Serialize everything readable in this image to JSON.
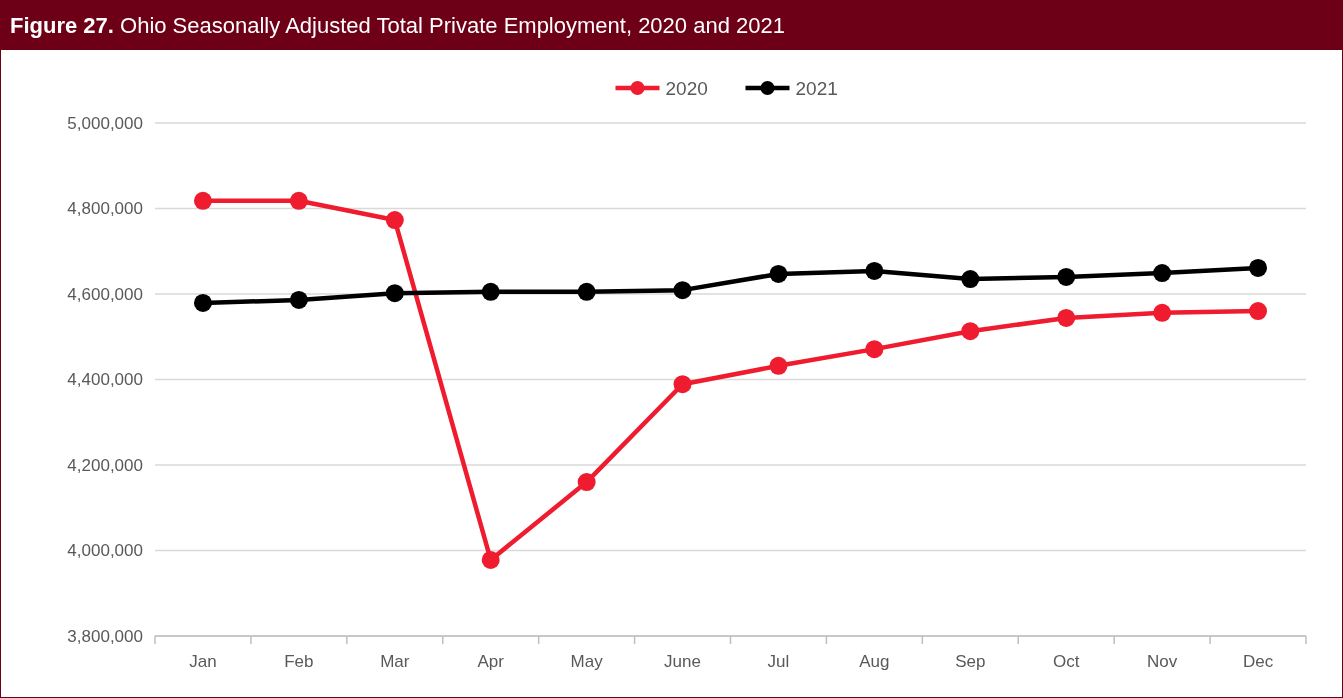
{
  "chart_data": {
    "type": "line",
    "title": "Figure 27. Ohio Seasonally Adjusted Total Private Employment, 2020 and 2021",
    "categories": [
      "Jan",
      "Feb",
      "Mar",
      "Apr",
      "May",
      "June",
      "Jul",
      "Aug",
      "Sep",
      "Oct",
      "Nov",
      "Dec"
    ],
    "series": [
      {
        "name": "2020",
        "color": "#ee1c2e",
        "values": [
          4818000,
          4818000,
          4773000,
          3978000,
          4160000,
          4389000,
          4432000,
          4471000,
          4513000,
          4544000,
          4556000,
          4560000
        ]
      },
      {
        "name": "2021",
        "color": "#000000",
        "values": [
          4579000,
          4586000,
          4602000,
          4605000,
          4605000,
          4609000,
          4647000,
          4654000,
          4635000,
          4640000,
          4649000,
          4661000
        ]
      }
    ],
    "ylim": [
      3800000,
      5000000
    ],
    "yticks": [
      {
        "value": 3800000,
        "label": "3,800,000"
      },
      {
        "value": 4000000,
        "label": "4,000,000"
      },
      {
        "value": 4200000,
        "label": "4,200,000"
      },
      {
        "value": 4400000,
        "label": "4,400,000"
      },
      {
        "value": 4600000,
        "label": "4,600,000"
      },
      {
        "value": 4800000,
        "label": "4,800,000"
      },
      {
        "value": 5000000,
        "label": "5,000,000"
      }
    ],
    "grid": "y",
    "legend": "top",
    "marker": "circle",
    "line_style": "solid"
  }
}
